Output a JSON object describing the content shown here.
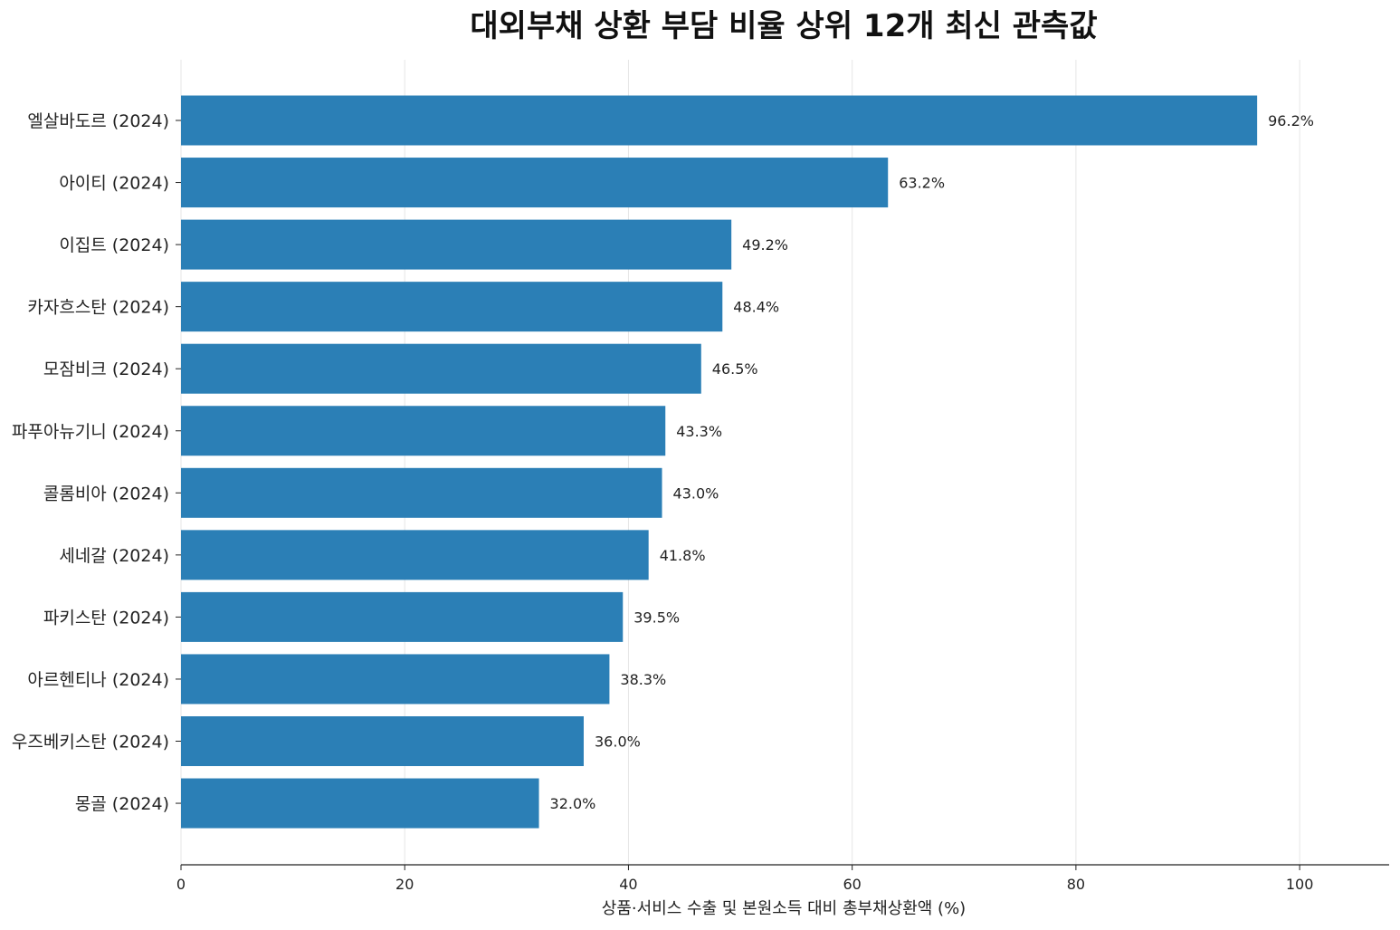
{
  "chart_data": {
    "type": "bar",
    "orientation": "horizontal",
    "title": "대외부채 상환 부담 비율 상위 12개 최신 관측값",
    "xlabel": "상품·서비스 수출 및 본원소득 대비 총부채상환액 (%)",
    "ylabel": "",
    "xlim": [
      0,
      108
    ],
    "xticks": [
      0,
      20,
      40,
      60,
      80,
      100
    ],
    "grid": true,
    "bar_color": "#2b7fb6",
    "categories": [
      "엘살바도르 (2024)",
      "아이티 (2024)",
      "이집트 (2024)",
      "카자흐스탄 (2024)",
      "모잠비크 (2024)",
      "파푸아뉴기니 (2024)",
      "콜롬비아 (2024)",
      "세네갈 (2024)",
      "파키스탄 (2024)",
      "아르헨티나 (2024)",
      "우즈베키스탄 (2024)",
      "몽골 (2024)"
    ],
    "values": [
      96.2,
      63.2,
      49.2,
      48.4,
      46.5,
      43.3,
      43.0,
      41.8,
      39.5,
      38.3,
      36.0,
      32.0
    ],
    "data_labels": [
      "96.2%",
      "63.2%",
      "49.2%",
      "48.4%",
      "46.5%",
      "43.3%",
      "43.0%",
      "41.8%",
      "39.5%",
      "38.3%",
      "36.0%",
      "32.0%"
    ]
  }
}
